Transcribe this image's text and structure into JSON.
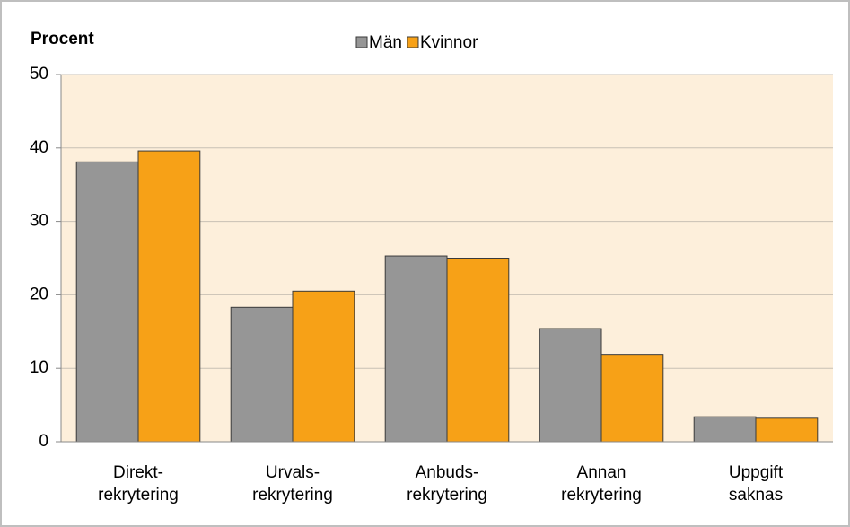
{
  "chart_data": {
    "type": "bar",
    "y_label": "Procent",
    "categories": [
      [
        "Direkt-",
        "rekrytering"
      ],
      [
        "Urvals-",
        "rekrytering"
      ],
      [
        "Anbuds-",
        "rekrytering"
      ],
      [
        "Annan",
        "rekrytering"
      ],
      [
        "Uppgift",
        "saknas"
      ]
    ],
    "series": [
      {
        "name": "Män",
        "color": "#969696",
        "values": [
          38.1,
          18.3,
          25.3,
          15.4,
          3.4
        ]
      },
      {
        "name": "Kvinnor",
        "color": "#F7A117",
        "values": [
          39.6,
          20.5,
          25.0,
          11.9,
          3.2
        ]
      }
    ],
    "ylim": [
      0,
      50
    ],
    "yticks": [
      0,
      10,
      20,
      30,
      40,
      50
    ],
    "grid": true,
    "plot_background": "#FDEFDB"
  }
}
